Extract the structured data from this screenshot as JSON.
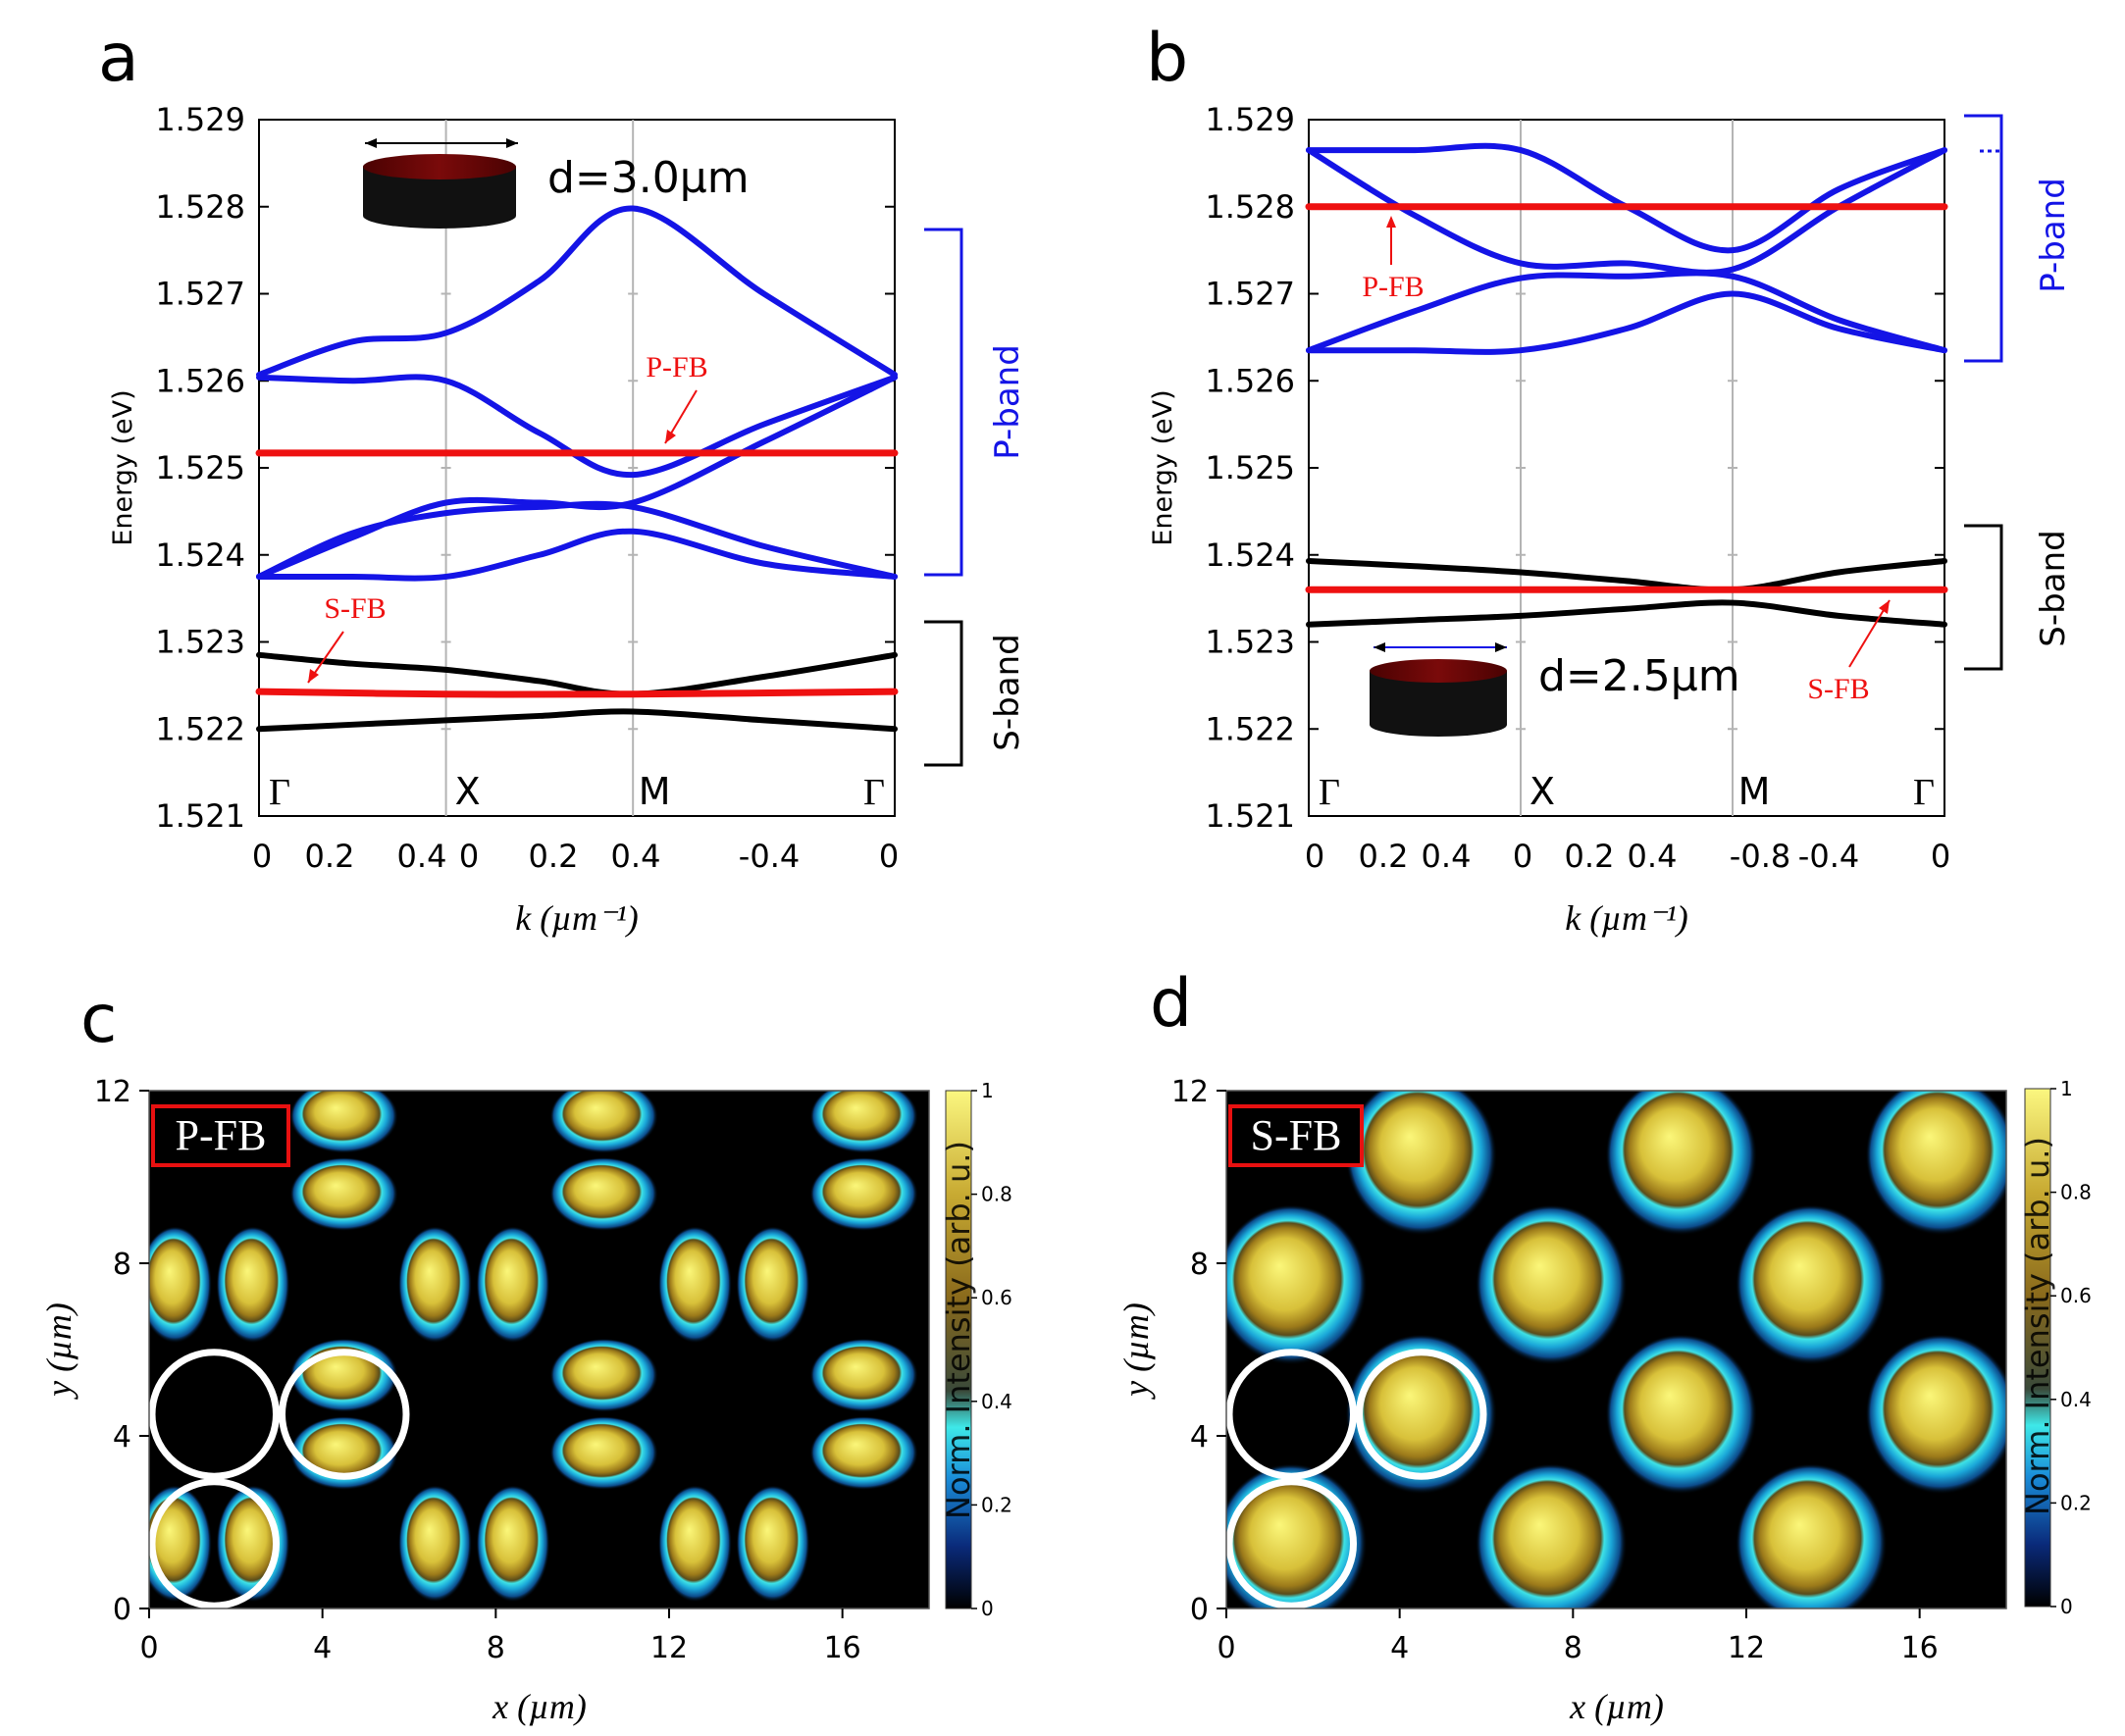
{
  "colors": {
    "blue": "#1414e6",
    "red": "#ee1111",
    "black": "#000000",
    "grid": "#b4b4b4",
    "disk_top": "#6b0606"
  },
  "panels": {
    "a": {
      "letter": "a",
      "disk_label": "d=3.0µm",
      "p_fb_label": "P-FB",
      "s_fb_label": "S-FB",
      "p_band_label": "P-band",
      "s_band_label": "S-band"
    },
    "b": {
      "letter": "b",
      "disk_label": "d=2.5µm",
      "p_fb_label": "P-FB",
      "s_fb_label": "S-FB",
      "p_band_label": "P-band",
      "s_band_label": "S-band"
    },
    "c": {
      "letter": "c",
      "box_label": "P-FB"
    },
    "d": {
      "letter": "d",
      "box_label": "S-FB"
    }
  },
  "chart_data": [
    {
      "id": "a",
      "type": "line",
      "title": "",
      "ylabel": "Energy (eV)",
      "xlabel": "k (µm⁻¹)",
      "ylim": [
        1.521,
        1.529
      ],
      "yticks": [
        "1.521",
        "1.522",
        "1.523",
        "1.524",
        "1.525",
        "1.526",
        "1.527",
        "1.528",
        "1.529"
      ],
      "xticks": [
        "0",
        "0.2",
        "0.4",
        "0",
        "0.2",
        "0.4",
        "-0.4",
        "0"
      ],
      "symmetry_points": [
        "Γ",
        "X",
        "M",
        "Γ"
      ],
      "segment_lengths": [
        0.5,
        0.5,
        0.7
      ],
      "series": [
        {
          "name": "P-band 1",
          "band": "P",
          "values": [
            [
              0,
              1.52607
            ],
            [
              0.25,
              1.52645
            ],
            [
              0.5,
              1.52655
            ],
            [
              0.75,
              1.52715
            ],
            [
              1.0,
              1.52798
            ],
            [
              1.35,
              1.527
            ],
            [
              1.7,
              1.52607
            ]
          ]
        },
        {
          "name": "P-band 2",
          "band": "P",
          "values": [
            [
              0,
              1.52604
            ],
            [
              0.25,
              1.526
            ],
            [
              0.5,
              1.526
            ],
            [
              0.75,
              1.5254
            ],
            [
              1.0,
              1.52492
            ],
            [
              1.35,
              1.5255
            ],
            [
              1.7,
              1.52604
            ]
          ]
        },
        {
          "name": "P-band 3",
          "band": "P",
          "values": [
            [
              0,
              1.52375
            ],
            [
              0.25,
              1.5242
            ],
            [
              0.5,
              1.5246
            ],
            [
              0.75,
              1.5246
            ],
            [
              1.0,
              1.5246
            ],
            [
              1.35,
              1.5253
            ],
            [
              1.7,
              1.52604
            ]
          ]
        },
        {
          "name": "P-band 4",
          "band": "P",
          "values": [
            [
              0,
              1.52375
            ],
            [
              0.25,
              1.52425
            ],
            [
              0.5,
              1.52448
            ],
            [
              0.75,
              1.52455
            ],
            [
              1.0,
              1.52455
            ],
            [
              1.35,
              1.5241
            ],
            [
              1.7,
              1.52375
            ]
          ]
        },
        {
          "name": "P-band 5",
          "band": "P",
          "values": [
            [
              0,
              1.52375
            ],
            [
              0.25,
              1.52375
            ],
            [
              0.5,
              1.52375
            ],
            [
              0.75,
              1.524
            ],
            [
              1.0,
              1.52427
            ],
            [
              1.35,
              1.5239
            ],
            [
              1.7,
              1.52375
            ]
          ]
        },
        {
          "name": "P-FB",
          "band": "FB",
          "values": [
            [
              0,
              1.52517
            ],
            [
              1.7,
              1.52517
            ]
          ]
        },
        {
          "name": "S-band upper",
          "band": "S",
          "values": [
            [
              0,
              1.52285
            ],
            [
              0.25,
              1.52275
            ],
            [
              0.5,
              1.52268
            ],
            [
              0.75,
              1.52255
            ],
            [
              1.0,
              1.5224
            ],
            [
              1.35,
              1.5226
            ],
            [
              1.7,
              1.52285
            ]
          ]
        },
        {
          "name": "S-band lower",
          "band": "S",
          "values": [
            [
              0,
              1.522
            ],
            [
              0.25,
              1.52205
            ],
            [
              0.5,
              1.5221
            ],
            [
              0.75,
              1.52215
            ],
            [
              1.0,
              1.5222
            ],
            [
              1.35,
              1.5221
            ],
            [
              1.7,
              1.522
            ]
          ]
        },
        {
          "name": "S-FB",
          "band": "FB",
          "values": [
            [
              0,
              1.52243
            ],
            [
              0.5,
              1.5224
            ],
            [
              1.0,
              1.5224
            ],
            [
              1.7,
              1.52243
            ]
          ]
        }
      ]
    },
    {
      "id": "b",
      "type": "line",
      "title": "",
      "ylabel": "Energy (eV)",
      "xlabel": "k (µm⁻¹)",
      "ylim": [
        1.521,
        1.529
      ],
      "yticks": [
        "1.521",
        "1.522",
        "1.523",
        "1.524",
        "1.525",
        "1.526",
        "1.527",
        "1.528",
        "1.529"
      ],
      "xticks": [
        "0",
        "0.2",
        "0.4",
        "0",
        "0.2",
        "0.4",
        "-0.8",
        "-0.4",
        "0"
      ],
      "symmetry_points": [
        "Γ",
        "X",
        "M",
        "Γ"
      ],
      "segment_lengths": [
        0.6,
        0.6,
        0.6
      ],
      "series": [
        {
          "name": "P-band 1",
          "band": "P",
          "values": [
            [
              0,
              1.52865
            ],
            [
              0.3,
              1.52865
            ],
            [
              0.6,
              1.52865
            ],
            [
              0.9,
              1.528
            ],
            [
              1.2,
              1.5275
            ],
            [
              1.5,
              1.5282
            ],
            [
              1.8,
              1.52865
            ]
          ]
        },
        {
          "name": "P-band 2",
          "band": "P",
          "values": [
            [
              0,
              1.52865
            ],
            [
              0.3,
              1.5279
            ],
            [
              0.6,
              1.52735
            ],
            [
              0.9,
              1.52735
            ],
            [
              1.2,
              1.52728
            ],
            [
              1.5,
              1.528
            ],
            [
              1.8,
              1.52865
            ]
          ]
        },
        {
          "name": "P-band 3",
          "band": "P",
          "values": [
            [
              0,
              1.52635
            ],
            [
              0.3,
              1.5268
            ],
            [
              0.6,
              1.52718
            ],
            [
              0.9,
              1.5272
            ],
            [
              1.2,
              1.5272
            ],
            [
              1.5,
              1.5267
            ],
            [
              1.8,
              1.52635
            ]
          ]
        },
        {
          "name": "P-band 4",
          "band": "P",
          "values": [
            [
              0,
              1.52635
            ],
            [
              0.3,
              1.52635
            ],
            [
              0.6,
              1.52635
            ],
            [
              0.9,
              1.5266
            ],
            [
              1.2,
              1.527
            ],
            [
              1.5,
              1.5266
            ],
            [
              1.8,
              1.52635
            ]
          ]
        },
        {
          "name": "P-FB",
          "band": "FB",
          "values": [
            [
              0,
              1.528
            ],
            [
              1.8,
              1.528
            ]
          ]
        },
        {
          "name": "S-band upper",
          "band": "S",
          "values": [
            [
              0,
              1.52393
            ],
            [
              0.3,
              1.52387
            ],
            [
              0.6,
              1.5238
            ],
            [
              0.9,
              1.5237
            ],
            [
              1.2,
              1.5236
            ],
            [
              1.5,
              1.5238
            ],
            [
              1.8,
              1.52393
            ]
          ]
        },
        {
          "name": "S-band lower",
          "band": "S",
          "values": [
            [
              0,
              1.5232
            ],
            [
              0.3,
              1.52325
            ],
            [
              0.6,
              1.5233
            ],
            [
              0.9,
              1.52338
            ],
            [
              1.2,
              1.52345
            ],
            [
              1.5,
              1.5233
            ],
            [
              1.8,
              1.5232
            ]
          ]
        },
        {
          "name": "S-FB",
          "band": "FB",
          "values": [
            [
              0,
              1.5236
            ],
            [
              1.8,
              1.5236
            ]
          ]
        }
      ]
    },
    {
      "id": "c",
      "type": "heatmap",
      "title": "",
      "xlabel": "x (µm)",
      "ylabel": "y (µm)",
      "xlim": [
        0,
        18
      ],
      "ylim": [
        0,
        12
      ],
      "xticks": [
        0,
        4,
        8,
        12,
        16
      ],
      "yticks": [
        0,
        4,
        8,
        12
      ],
      "colorbar": {
        "label": "Norm. Intensity (arb. u.)",
        "ticks": [
          "0",
          "0.2",
          "0.4",
          "0.6",
          "0.8",
          "1"
        ]
      },
      "lobes": [
        [
          0.6,
          1.5,
          "v"
        ],
        [
          2.4,
          1.5,
          "v"
        ],
        [
          6.6,
          1.5,
          "v"
        ],
        [
          8.4,
          1.5,
          "v"
        ],
        [
          12.6,
          1.5,
          "v"
        ],
        [
          14.4,
          1.5,
          "v"
        ],
        [
          0.6,
          7.5,
          "v"
        ],
        [
          2.4,
          7.5,
          "v"
        ],
        [
          6.6,
          7.5,
          "v"
        ],
        [
          8.4,
          7.5,
          "v"
        ],
        [
          12.6,
          7.5,
          "v"
        ],
        [
          14.4,
          7.5,
          "v"
        ],
        [
          4.5,
          3.6,
          "h"
        ],
        [
          4.5,
          5.4,
          "h"
        ],
        [
          10.5,
          3.6,
          "h"
        ],
        [
          10.5,
          5.4,
          "h"
        ],
        [
          16.5,
          3.6,
          "h"
        ],
        [
          16.5,
          5.4,
          "h"
        ],
        [
          4.5,
          9.6,
          "h"
        ],
        [
          4.5,
          11.4,
          "h"
        ],
        [
          10.5,
          9.6,
          "h"
        ],
        [
          10.5,
          11.4,
          "h"
        ],
        [
          16.5,
          9.6,
          "h"
        ],
        [
          16.5,
          11.4,
          "h"
        ]
      ],
      "circles": [
        [
          1.5,
          4.5,
          1.5
        ],
        [
          4.5,
          4.5,
          1.5
        ],
        [
          1.5,
          1.5,
          1.5
        ]
      ]
    },
    {
      "id": "d",
      "type": "heatmap",
      "title": "",
      "xlabel": "x (µm)",
      "ylabel": "y (µm)",
      "xlim": [
        0,
        18
      ],
      "ylim": [
        0,
        12
      ],
      "xticks": [
        0,
        4,
        8,
        12,
        16
      ],
      "yticks": [
        0,
        4,
        8,
        12
      ],
      "colorbar": {
        "label": "Norm. Intensity (arb. u.)",
        "ticks": [
          "0",
          "0.2",
          "0.4",
          "0.6",
          "0.8",
          "1"
        ]
      },
      "spots": [
        [
          1.5,
          1.5
        ],
        [
          7.5,
          1.5
        ],
        [
          13.5,
          1.5
        ],
        [
          4.5,
          4.5
        ],
        [
          10.5,
          4.5
        ],
        [
          16.5,
          4.5
        ],
        [
          1.5,
          7.5
        ],
        [
          7.5,
          7.5
        ],
        [
          13.5,
          7.5
        ],
        [
          4.5,
          10.5
        ],
        [
          10.5,
          10.5
        ],
        [
          16.5,
          10.5
        ]
      ],
      "circles": [
        [
          1.5,
          4.5,
          1.5
        ],
        [
          4.5,
          4.5,
          1.5
        ],
        [
          1.5,
          1.5,
          1.5
        ]
      ]
    }
  ]
}
